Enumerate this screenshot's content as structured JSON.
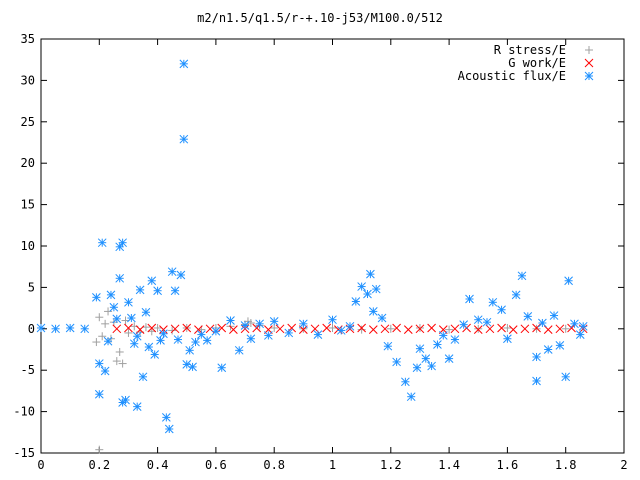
{
  "chart_data": {
    "type": "scatter",
    "title": "m2/n1.5/q1.5/r-+.10-j53/M100.0/512",
    "xlabel": "",
    "ylabel": "",
    "xlim": [
      0,
      2
    ],
    "ylim": [
      -15,
      35
    ],
    "xticks": [
      "0",
      "0.2",
      "0.4",
      "0.6",
      "0.8",
      "1",
      "1.2",
      "1.4",
      "1.6",
      "1.8",
      "2"
    ],
    "yticks": [
      "35",
      "30",
      "25",
      "20",
      "15",
      "10",
      "5",
      "0",
      "-5",
      "-10",
      "-15"
    ],
    "grid": false,
    "legend_position": "top-right",
    "series": [
      {
        "name": "R stress/E",
        "marker": "plus",
        "color": "#a0a0a0",
        "points": [
          [
            0.19,
            -1.6
          ],
          [
            0.2,
            -14.6
          ],
          [
            0.2,
            1.4
          ],
          [
            0.21,
            -0.9
          ],
          [
            0.22,
            0.6
          ],
          [
            0.23,
            2.1
          ],
          [
            0.24,
            -1.2
          ],
          [
            0.25,
            0.8
          ],
          [
            0.26,
            -3.9
          ],
          [
            0.27,
            -2.8
          ],
          [
            0.28,
            -4.2
          ],
          [
            0.29,
            1.0
          ],
          [
            0.3,
            -0.5
          ],
          [
            0.32,
            0.3
          ],
          [
            0.34,
            -0.4
          ],
          [
            0.36,
            0.2
          ],
          [
            0.38,
            -0.3
          ],
          [
            0.4,
            0.1
          ],
          [
            0.45,
            -0.2
          ],
          [
            0.5,
            0.1
          ],
          [
            0.55,
            -0.1
          ],
          [
            0.6,
            0.1
          ],
          [
            0.65,
            0.3
          ],
          [
            0.7,
            0.5
          ],
          [
            0.71,
            0.9
          ],
          [
            0.72,
            0.7
          ],
          [
            0.75,
            0.4
          ],
          [
            0.8,
            0.1
          ],
          [
            0.9,
            0.0
          ],
          [
            1.0,
            0.1
          ],
          [
            1.1,
            -0.1
          ],
          [
            1.2,
            0.0
          ],
          [
            1.3,
            0.1
          ],
          [
            1.4,
            -0.1
          ],
          [
            1.5,
            0.0
          ],
          [
            1.6,
            0.1
          ],
          [
            1.7,
            0.0
          ],
          [
            1.8,
            0.0
          ]
        ]
      },
      {
        "name": "G work/E",
        "marker": "cross",
        "color": "#ff0000",
        "points": [
          [
            0.26,
            0.0
          ],
          [
            0.3,
            0.1
          ],
          [
            0.34,
            -0.1
          ],
          [
            0.38,
            0.1
          ],
          [
            0.42,
            -0.1
          ],
          [
            0.46,
            0.0
          ],
          [
            0.5,
            0.1
          ],
          [
            0.54,
            -0.1
          ],
          [
            0.58,
            0.0
          ],
          [
            0.62,
            0.1
          ],
          [
            0.66,
            -0.1
          ],
          [
            0.7,
            0.0
          ],
          [
            0.74,
            0.1
          ],
          [
            0.78,
            -0.1
          ],
          [
            0.82,
            0.0
          ],
          [
            0.86,
            0.1
          ],
          [
            0.9,
            -0.1
          ],
          [
            0.94,
            0.0
          ],
          [
            0.98,
            0.1
          ],
          [
            1.02,
            -0.1
          ],
          [
            1.06,
            0.0
          ],
          [
            1.1,
            0.1
          ],
          [
            1.14,
            -0.1
          ],
          [
            1.18,
            0.0
          ],
          [
            1.22,
            0.1
          ],
          [
            1.26,
            -0.1
          ],
          [
            1.3,
            0.0
          ],
          [
            1.34,
            0.1
          ],
          [
            1.38,
            -0.1
          ],
          [
            1.42,
            0.0
          ],
          [
            1.46,
            0.1
          ],
          [
            1.5,
            -0.1
          ],
          [
            1.54,
            0.0
          ],
          [
            1.58,
            0.1
          ],
          [
            1.62,
            -0.1
          ],
          [
            1.66,
            0.0
          ],
          [
            1.7,
            0.1
          ],
          [
            1.74,
            -0.1
          ],
          [
            1.78,
            0.0
          ],
          [
            1.82,
            0.1
          ],
          [
            1.86,
            0.0
          ]
        ]
      },
      {
        "name": "Acoustic flux/E",
        "marker": "star",
        "color": "#1e90ff",
        "points": [
          [
            0.0,
            0.1
          ],
          [
            0.05,
            0.0
          ],
          [
            0.1,
            0.1
          ],
          [
            0.15,
            0.0
          ],
          [
            0.19,
            3.8
          ],
          [
            0.2,
            -4.2
          ],
          [
            0.2,
            -7.9
          ],
          [
            0.21,
            10.4
          ],
          [
            0.22,
            -5.1
          ],
          [
            0.23,
            -1.5
          ],
          [
            0.24,
            4.1
          ],
          [
            0.25,
            2.6
          ],
          [
            0.26,
            1.2
          ],
          [
            0.27,
            9.9
          ],
          [
            0.27,
            6.1
          ],
          [
            0.28,
            10.4
          ],
          [
            0.28,
            -8.9
          ],
          [
            0.29,
            -8.6
          ],
          [
            0.3,
            3.2
          ],
          [
            0.31,
            1.3
          ],
          [
            0.32,
            -1.8
          ],
          [
            0.33,
            -0.9
          ],
          [
            0.33,
            -9.4
          ],
          [
            0.34,
            4.7
          ],
          [
            0.35,
            -5.8
          ],
          [
            0.36,
            2.0
          ],
          [
            0.37,
            -2.2
          ],
          [
            0.38,
            5.8
          ],
          [
            0.39,
            -3.1
          ],
          [
            0.4,
            4.6
          ],
          [
            0.41,
            -1.4
          ],
          [
            0.42,
            -0.6
          ],
          [
            0.43,
            -10.7
          ],
          [
            0.44,
            -12.1
          ],
          [
            0.45,
            6.9
          ],
          [
            0.46,
            4.6
          ],
          [
            0.47,
            -1.3
          ],
          [
            0.48,
            6.5
          ],
          [
            0.49,
            32.0
          ],
          [
            0.49,
            22.9
          ],
          [
            0.5,
            -4.3
          ],
          [
            0.51,
            -2.6
          ],
          [
            0.52,
            -4.6
          ],
          [
            0.53,
            -1.6
          ],
          [
            0.55,
            -0.7
          ],
          [
            0.57,
            -1.4
          ],
          [
            0.6,
            -0.3
          ],
          [
            0.62,
            -4.7
          ],
          [
            0.65,
            1.0
          ],
          [
            0.68,
            -2.6
          ],
          [
            0.7,
            0.4
          ],
          [
            0.72,
            -1.2
          ],
          [
            0.75,
            0.6
          ],
          [
            0.78,
            -0.8
          ],
          [
            0.8,
            0.9
          ],
          [
            0.85,
            -0.5
          ],
          [
            0.9,
            0.6
          ],
          [
            0.95,
            -0.7
          ],
          [
            1.0,
            1.1
          ],
          [
            1.03,
            -0.2
          ],
          [
            1.06,
            0.3
          ],
          [
            1.08,
            3.3
          ],
          [
            1.1,
            5.1
          ],
          [
            1.12,
            4.2
          ],
          [
            1.13,
            6.6
          ],
          [
            1.14,
            2.1
          ],
          [
            1.15,
            4.8
          ],
          [
            1.17,
            1.3
          ],
          [
            1.19,
            -2.1
          ],
          [
            1.22,
            -4.0
          ],
          [
            1.25,
            -6.4
          ],
          [
            1.27,
            -8.2
          ],
          [
            1.29,
            -4.7
          ],
          [
            1.3,
            -2.4
          ],
          [
            1.32,
            -3.6
          ],
          [
            1.34,
            -4.5
          ],
          [
            1.36,
            -1.9
          ],
          [
            1.38,
            -0.8
          ],
          [
            1.4,
            -3.6
          ],
          [
            1.42,
            -1.3
          ],
          [
            1.45,
            0.5
          ],
          [
            1.47,
            3.6
          ],
          [
            1.5,
            1.1
          ],
          [
            1.53,
            0.8
          ],
          [
            1.55,
            3.2
          ],
          [
            1.58,
            2.3
          ],
          [
            1.6,
            -1.2
          ],
          [
            1.63,
            4.1
          ],
          [
            1.65,
            6.4
          ],
          [
            1.67,
            1.5
          ],
          [
            1.7,
            -3.4
          ],
          [
            1.7,
            -6.3
          ],
          [
            1.72,
            0.7
          ],
          [
            1.74,
            -2.5
          ],
          [
            1.76,
            1.6
          ],
          [
            1.78,
            -2.0
          ],
          [
            1.8,
            -5.8
          ],
          [
            1.81,
            5.8
          ],
          [
            1.83,
            0.6
          ],
          [
            1.85,
            -0.7
          ],
          [
            1.86,
            0.3
          ]
        ]
      }
    ]
  }
}
